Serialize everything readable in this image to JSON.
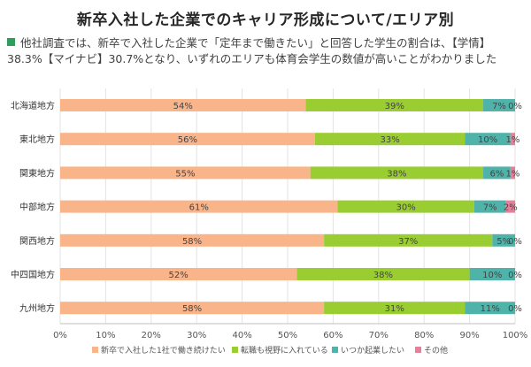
{
  "header": {
    "title": "新卒入社した企業でのキャリア形成について/エリア別",
    "note_line1": "他社調査では、新卒で入社した企業で「定年まで働きたい」と回答した学生の割合は、【学情】",
    "note_line2": "38.3%【マイナビ】30.7%となり、いずれのエリアも体育会学生の数値が高いことがわかりました"
  },
  "colors": {
    "series": [
      "#f9b48a",
      "#9acd32",
      "#4fb3a9",
      "#e87f9a"
    ],
    "bullet": "#2e9e5b"
  },
  "chart_data": {
    "type": "bar",
    "orientation": "horizontal",
    "stacked": true,
    "title": "新卒入社した企業でのキャリア形成について/エリア別",
    "categories": [
      "北海道地方",
      "東北地方",
      "関東地方",
      "中部地方",
      "関西地方",
      "中四国地方",
      "九州地方"
    ],
    "series": [
      {
        "name": "新卒で入社した1社で働き続けたい",
        "values": [
          54,
          56,
          55,
          61,
          58,
          52,
          58
        ]
      },
      {
        "name": "転職も視野に入れている",
        "values": [
          39,
          33,
          38,
          30,
          37,
          38,
          31
        ]
      },
      {
        "name": "いつか起業したい",
        "values": [
          7,
          10,
          6,
          7,
          5,
          10,
          11
        ]
      },
      {
        "name": "その他",
        "values": [
          0,
          1,
          1,
          2,
          0,
          0,
          0
        ]
      }
    ],
    "xlim": [
      0,
      100
    ],
    "xticks": [
      "0%",
      "10%",
      "20%",
      "30%",
      "40%",
      "50%",
      "60%",
      "70%",
      "80%",
      "90%",
      "100%"
    ],
    "value_suffix": "%",
    "legend_position": "bottom"
  }
}
